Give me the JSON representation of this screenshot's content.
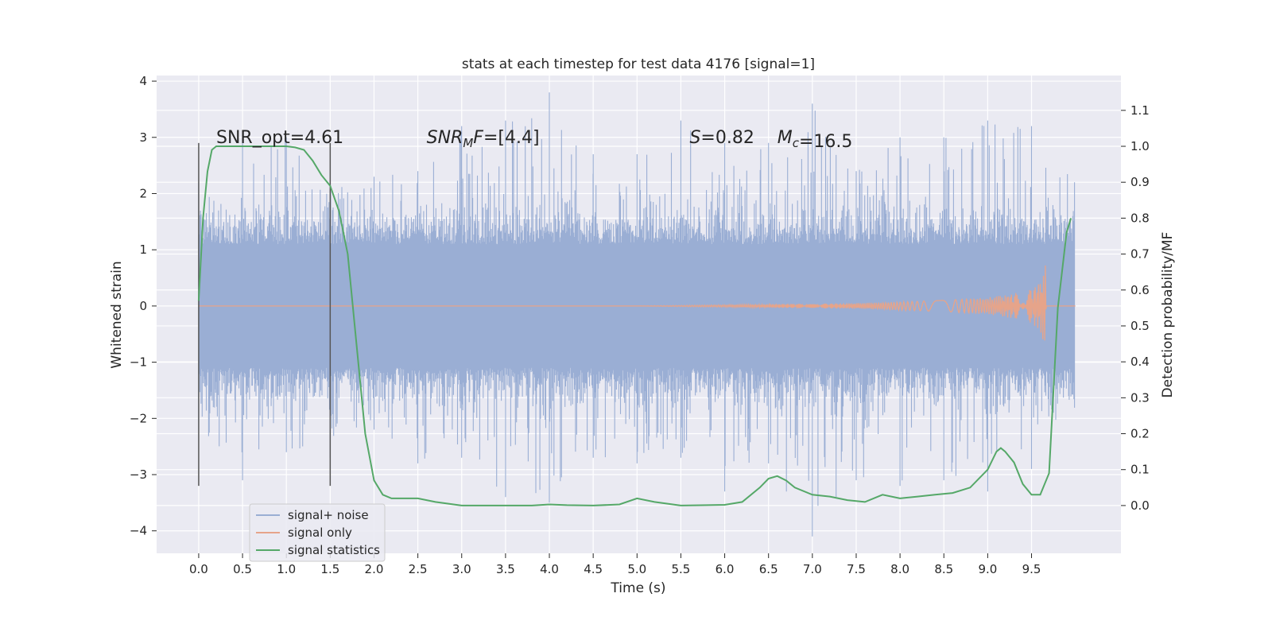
{
  "chart_data": {
    "type": "line",
    "title": "stats at each timestep for test data 4176 [signal=1]",
    "xlabel": "Time (s)",
    "ylabel": "Whitened strain",
    "y2label": "Detection probability/MF",
    "xlim": [
      -0.48,
      10.52
    ],
    "ylim": [
      -4.4,
      4.1
    ],
    "y2lim": [
      -0.133,
      1.197
    ],
    "xticks": [
      0.0,
      0.5,
      1.0,
      1.5,
      2.0,
      2.5,
      3.0,
      3.5,
      4.0,
      4.5,
      5.0,
      5.5,
      6.0,
      6.5,
      7.0,
      7.5,
      8.0,
      8.5,
      9.0,
      9.5
    ],
    "xtick_labels": [
      "0.0",
      "0.5",
      "1.0",
      "1.5",
      "2.0",
      "2.5",
      "3.0",
      "3.5",
      "4.0",
      "4.5",
      "5.0",
      "5.5",
      "6.0",
      "6.5",
      "7.0",
      "7.5",
      "8.0",
      "8.5",
      "9.0",
      "9.5"
    ],
    "yticks": [
      -4,
      -3,
      -2,
      -1,
      0,
      1,
      2,
      3,
      4
    ],
    "ytick_labels": [
      "−4",
      "−3",
      "−2",
      "−1",
      "0",
      "1",
      "2",
      "3",
      "4"
    ],
    "y2ticks": [
      0.0,
      0.1,
      0.2,
      0.3,
      0.4,
      0.5,
      0.6,
      0.7,
      0.8,
      0.9,
      1.0,
      1.1
    ],
    "y2tick_labels": [
      "0.0",
      "0.1",
      "0.2",
      "0.3",
      "0.4",
      "0.5",
      "0.6",
      "0.7",
      "0.8",
      "0.9",
      "1.0",
      "1.1"
    ],
    "grid": true,
    "legend_position": "lower-left",
    "vlines": [
      {
        "x": 0.0,
        "ymin": -3.2,
        "ymax": 2.9
      },
      {
        "x": 1.5,
        "ymin": -3.2,
        "ymax": 2.9
      }
    ],
    "annotations": [
      {
        "key": "snr_opt",
        "x": 0.2,
        "y": 2.9,
        "text": "SNR_opt=4.61"
      },
      {
        "key": "snr_mf",
        "x": 2.6,
        "y": 2.9,
        "italic": "SNR",
        "sub": "M",
        "italic2": "F",
        "text": "=[4.4]"
      },
      {
        "key": "s",
        "x": 5.6,
        "y": 2.9,
        "italic": "S",
        "text": "=0.82"
      },
      {
        "key": "mc",
        "x": 6.6,
        "y": 2.9,
        "italic": "M",
        "sub": "c",
        "text": "=16.5"
      }
    ],
    "series": [
      {
        "name": "signal+ noise",
        "color": "#9aaed4",
        "axis": "left",
        "x_range": [
          0.0,
          9.99
        ],
        "envelope_t": [
          0.0,
          0.5,
          1.0,
          1.5,
          2.0,
          2.5,
          3.0,
          3.5,
          4.0,
          4.5,
          5.0,
          5.5,
          6.0,
          6.5,
          7.0,
          7.5,
          8.0,
          8.5,
          9.0,
          9.5,
          9.99
        ],
        "envelope_top": [
          2.2,
          3.0,
          3.0,
          2.1,
          2.3,
          2.4,
          3.2,
          3.3,
          3.8,
          2.7,
          2.7,
          3.3,
          2.9,
          2.9,
          3.6,
          2.4,
          3.0,
          3.0,
          3.3,
          3.2,
          2.2
        ],
        "envelope_bottom": [
          -2.2,
          -3.1,
          -2.6,
          -2.7,
          -2.2,
          -2.8,
          -2.7,
          -3.4,
          -3.5,
          -2.7,
          -2.8,
          -2.7,
          -3.3,
          -2.8,
          -4.1,
          -3.1,
          -3.2,
          -3.1,
          -3.3,
          -2.9,
          -1.5
        ]
      },
      {
        "name": "signal only",
        "color": "#e6a48a",
        "axis": "left",
        "t": [
          0.0,
          5.0,
          6.5,
          7.5,
          8.5,
          9.0,
          9.3,
          9.5,
          9.6,
          9.66,
          9.67,
          10.0
        ],
        "amplitude": [
          0.0,
          0.0,
          0.03,
          0.05,
          0.1,
          0.15,
          0.22,
          0.3,
          0.45,
          0.8,
          0.0,
          0.0
        ]
      },
      {
        "name": "signal statistics",
        "color": "#55a868",
        "axis": "right",
        "x": [
          0.0,
          0.05,
          0.1,
          0.15,
          0.2,
          0.3,
          0.4,
          0.5,
          0.7,
          0.9,
          1.0,
          1.1,
          1.2,
          1.3,
          1.4,
          1.5,
          1.6,
          1.7,
          1.8,
          1.9,
          2.0,
          2.1,
          2.2,
          2.3,
          2.5,
          2.7,
          3.0,
          3.5,
          3.8,
          4.0,
          4.2,
          4.5,
          4.8,
          5.0,
          5.2,
          5.5,
          5.8,
          6.0,
          6.2,
          6.4,
          6.5,
          6.6,
          6.7,
          6.8,
          7.0,
          7.2,
          7.4,
          7.6,
          7.8,
          8.0,
          8.2,
          8.4,
          8.6,
          8.8,
          9.0,
          9.1,
          9.15,
          9.2,
          9.3,
          9.4,
          9.5,
          9.6,
          9.7,
          9.8,
          9.9,
          9.95
        ],
        "y": [
          0.57,
          0.8,
          0.93,
          0.99,
          1.0,
          1.0,
          1.0,
          1.0,
          1.0,
          1.0,
          1.0,
          0.997,
          0.99,
          0.96,
          0.92,
          0.89,
          0.82,
          0.7,
          0.45,
          0.2,
          0.07,
          0.03,
          0.02,
          0.02,
          0.02,
          0.01,
          0.0,
          0.0,
          0.0,
          0.003,
          0.001,
          0.0,
          0.003,
          0.02,
          0.01,
          0.0,
          0.001,
          0.002,
          0.01,
          0.05,
          0.075,
          0.082,
          0.07,
          0.05,
          0.03,
          0.025,
          0.015,
          0.01,
          0.03,
          0.02,
          0.025,
          0.03,
          0.035,
          0.05,
          0.1,
          0.15,
          0.16,
          0.15,
          0.12,
          0.06,
          0.03,
          0.03,
          0.09,
          0.55,
          0.76,
          0.8
        ]
      }
    ]
  }
}
